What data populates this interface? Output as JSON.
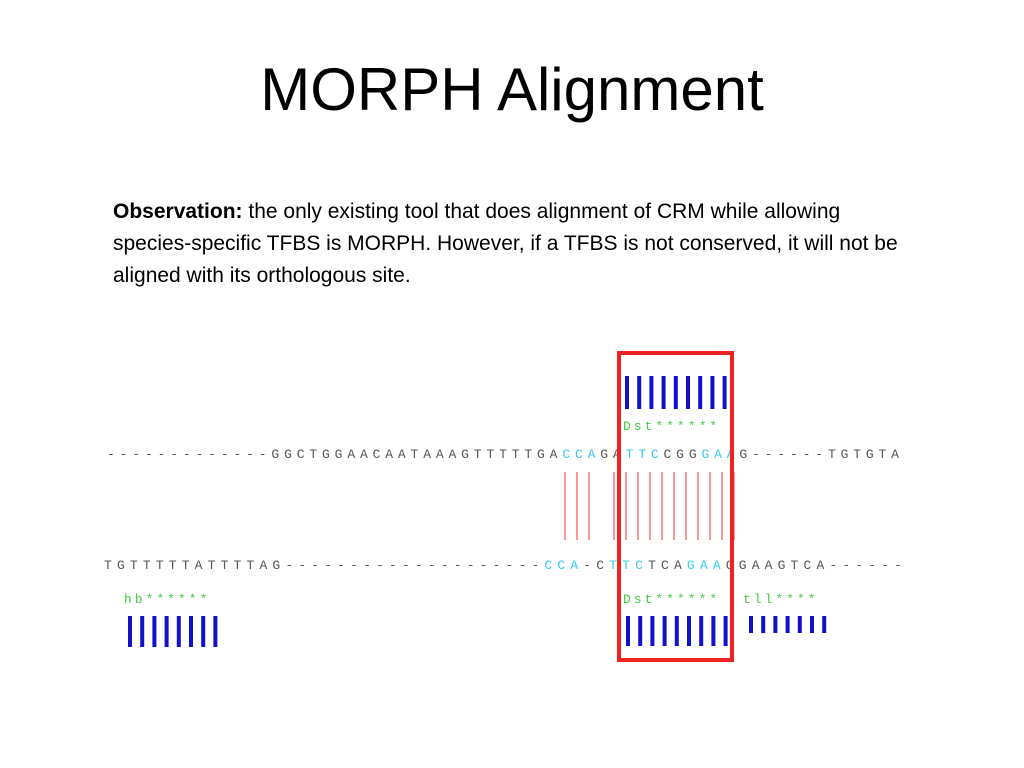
{
  "slide": {
    "title": "MORPH Alignment",
    "observation_label": "Observation:",
    "observation_text": " the only existing tool that does alignment of CRM while allowing species-specific TFBS is MORPH. However, if a TFBS is not conserved, it will not be aligned with its orthologous site."
  },
  "figure": {
    "colors": {
      "sequence": "#555555",
      "site_bases": "#33ccee",
      "site_labels": "#44cc44",
      "site_bars": "#1111cc",
      "alignment_links": "#ee5555",
      "highlight_box": "#ee2222"
    },
    "top_sequence": "-------------GGCTGGAACAATAAAGTTTTTGACCAGATTCCGGGAAG------TGTGTA",
    "bottom_sequence": "TGTTTTTATTTTAG--------------------CCA-CTTCTCAGAAGGAAGTCA------",
    "top_sites": [
      {
        "label": "Dst******"
      }
    ],
    "bottom_sites": [
      {
        "label": "hb******"
      },
      {
        "label": "Dst******"
      },
      {
        "label": "tll****"
      }
    ]
  }
}
